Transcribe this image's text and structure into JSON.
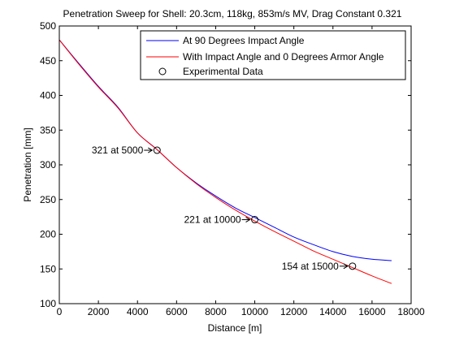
{
  "chart_data": {
    "type": "line",
    "title": "Penetration Sweep for Shell: 20.3cm, 118kg, 853m/s MV, Drag Constant 0.321",
    "xlabel": "Distance [m]",
    "ylabel": "Penetration [mm]",
    "xlim": [
      0,
      18000
    ],
    "ylim": [
      100,
      500
    ],
    "x_ticks": [
      0,
      2000,
      4000,
      6000,
      8000,
      10000,
      12000,
      14000,
      16000,
      18000
    ],
    "y_ticks": [
      100,
      150,
      200,
      250,
      300,
      350,
      400,
      450,
      500
    ],
    "grid": false,
    "legend_position": "top-right",
    "series": [
      {
        "name": "At 90 Degrees Impact Angle",
        "color": "#0000ff",
        "style": "line",
        "x": [
          0,
          1000,
          2000,
          3000,
          4000,
          5000,
          6000,
          7000,
          8000,
          9000,
          10000,
          11000,
          12000,
          13000,
          14000,
          15000,
          16000,
          17000
        ],
        "y": [
          480,
          446,
          413,
          383,
          346,
          322,
          296,
          274,
          255,
          238,
          224,
          210,
          196,
          185,
          175,
          168,
          164,
          162
        ]
      },
      {
        "name": "With Impact Angle and 0 Degrees Armor Angle",
        "color": "#ff0000",
        "style": "line",
        "x": [
          0,
          1000,
          2000,
          3000,
          4000,
          5000,
          6000,
          7000,
          8000,
          9000,
          10000,
          11000,
          12000,
          13000,
          14000,
          15000,
          16000,
          17000
        ],
        "y": [
          480,
          445,
          412,
          382,
          346,
          322,
          296,
          273,
          253,
          235,
          219,
          204,
          190,
          176,
          164,
          152,
          140,
          129
        ]
      },
      {
        "name": "Experimental Data",
        "color": "#000000",
        "style": "marker-circle",
        "x": [
          5000,
          10000,
          15000
        ],
        "y": [
          321,
          221,
          154
        ]
      }
    ],
    "annotations": [
      {
        "text": "321 at 5000",
        "x": 5000,
        "y": 321
      },
      {
        "text": "221 at 10000",
        "x": 10000,
        "y": 221
      },
      {
        "text": "154 at 15000",
        "x": 15000,
        "y": 154
      }
    ]
  }
}
